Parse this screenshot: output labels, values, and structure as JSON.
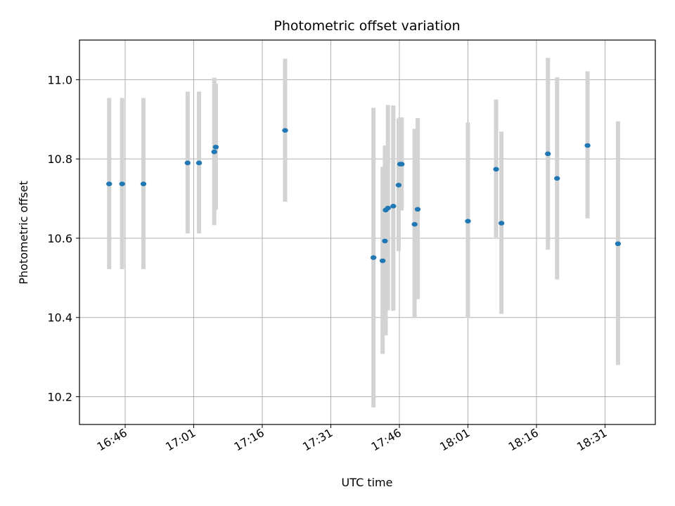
{
  "chart_data": {
    "type": "scatter",
    "title": "Photometric offset variation",
    "xlabel": "UTC time",
    "ylabel": "Photometric offset",
    "x_unit": "UTC time (HH:MM)",
    "xlim": [
      "16:36",
      "18:42"
    ],
    "ylim": [
      10.13,
      11.1
    ],
    "x_ticks": [
      "16:46",
      "17:01",
      "17:16",
      "17:31",
      "17:46",
      "18:01",
      "18:16",
      "18:31"
    ],
    "y_ticks": [
      10.2,
      10.4,
      10.6,
      10.8,
      11.0
    ],
    "y_tick_labels": [
      "10.2",
      "10.4",
      "10.6",
      "10.8",
      "11.0"
    ],
    "grid": true,
    "colors": {
      "point": "#1f77b4",
      "errorbar": "#d3d3d3",
      "grid": "#b0b0b0"
    },
    "series": [
      {
        "points": [
          {
            "x": "16:42:30",
            "y": 10.737,
            "err_low": 0.215,
            "err_high": 0.217
          },
          {
            "x": "16:45:20",
            "y": 10.737,
            "err_low": 0.215,
            "err_high": 0.217
          },
          {
            "x": "16:50:00",
            "y": 10.737,
            "err_low": 0.215,
            "err_high": 0.217
          },
          {
            "x": "16:59:40",
            "y": 10.79,
            "err_low": 0.178,
            "err_high": 0.18
          },
          {
            "x": "17:02:10",
            "y": 10.79,
            "err_low": 0.178,
            "err_high": 0.18
          },
          {
            "x": "17:05:30",
            "y": 10.818,
            "err_low": 0.185,
            "err_high": 0.187
          },
          {
            "x": "17:05:50",
            "y": 10.83,
            "err_low": 0.158,
            "err_high": 0.16
          },
          {
            "x": "17:21:00",
            "y": 10.872,
            "err_low": 0.18,
            "err_high": 0.181
          },
          {
            "x": "17:40:20",
            "y": 10.551,
            "err_low": 0.378,
            "err_high": 0.378
          },
          {
            "x": "17:42:20",
            "y": 10.543,
            "err_low": 0.235,
            "err_high": 0.237
          },
          {
            "x": "17:42:50",
            "y": 10.593,
            "err_low": 0.238,
            "err_high": 0.24
          },
          {
            "x": "17:43:00",
            "y": 10.671,
            "err_low": 0.316,
            "err_high": 0.163
          },
          {
            "x": "17:43:30",
            "y": 10.676,
            "err_low": 0.258,
            "err_high": 0.26
          },
          {
            "x": "17:44:40",
            "y": 10.681,
            "err_low": 0.264,
            "err_high": 0.254
          },
          {
            "x": "17:45:50",
            "y": 10.734,
            "err_low": 0.167,
            "err_high": 0.168
          },
          {
            "x": "17:46:10",
            "y": 10.787,
            "err_low": 0.117,
            "err_high": 0.118
          },
          {
            "x": "17:46:30",
            "y": 10.787,
            "err_low": 0.117,
            "err_high": 0.118
          },
          {
            "x": "17:49:20",
            "y": 10.635,
            "err_low": 0.235,
            "err_high": 0.241
          },
          {
            "x": "17:50:00",
            "y": 10.673,
            "err_low": 0.227,
            "err_high": 0.23
          },
          {
            "x": "18:01:00",
            "y": 10.643,
            "err_low": 0.244,
            "err_high": 0.249
          },
          {
            "x": "18:07:10",
            "y": 10.774,
            "err_low": 0.172,
            "err_high": 0.176
          },
          {
            "x": "18:08:20",
            "y": 10.638,
            "err_low": 0.229,
            "err_high": 0.231
          },
          {
            "x": "18:18:30",
            "y": 10.813,
            "err_low": 0.242,
            "err_high": 0.242
          },
          {
            "x": "18:20:30",
            "y": 10.751,
            "err_low": 0.255,
            "err_high": 0.255
          },
          {
            "x": "18:27:10",
            "y": 10.834,
            "err_low": 0.184,
            "err_high": 0.187
          },
          {
            "x": "18:33:50",
            "y": 10.586,
            "err_low": 0.306,
            "err_high": 0.309
          }
        ]
      }
    ]
  }
}
